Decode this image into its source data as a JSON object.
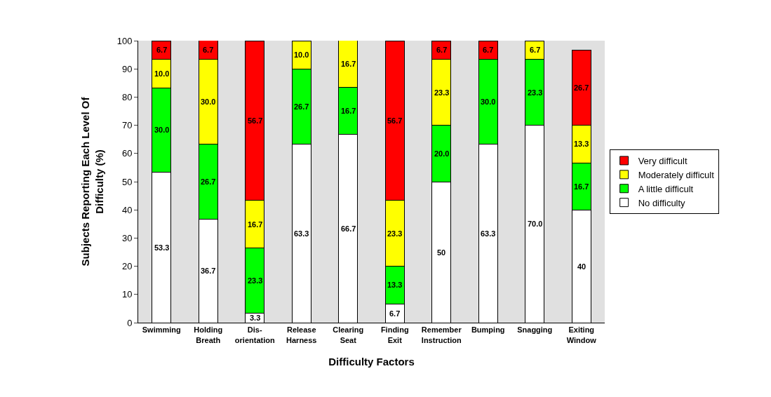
{
  "chart_data": {
    "type": "bar",
    "stacked": true,
    "xlabel": "Difficulty Factors",
    "ylabel": "Subjects Reporting Each Level Of\nDifficulty (%)",
    "categories": [
      "Swimming",
      "Holding\nBreath",
      "Dis-\norientation",
      "Release\nHarness",
      "Clearing\nSeat",
      "Finding\nExit",
      "Remember\nInstruction",
      "Bumping",
      "Snagging",
      "Exiting\nWindow"
    ],
    "series": [
      {
        "name": "No difficulty",
        "color": "#ffffff",
        "values": [
          53.3,
          36.7,
          3.3,
          63.3,
          66.7,
          6.7,
          50,
          63.3,
          70.0,
          40
        ],
        "value_labels": [
          "53.3",
          "36.7",
          "3.3",
          "63.3",
          "66.7",
          "6.7",
          "50",
          "63.3",
          "70.0",
          "40"
        ]
      },
      {
        "name": "A little difficult",
        "color": "#00ff00",
        "values": [
          30.0,
          26.7,
          23.3,
          26.7,
          16.7,
          13.3,
          20.0,
          30.0,
          23.3,
          16.7
        ],
        "value_labels": [
          "30.0",
          "26.7",
          "23.3",
          "26.7",
          "16.7",
          "13.3",
          "20.0",
          "30.0",
          "23.3",
          "16.7"
        ]
      },
      {
        "name": "Moderately difficult",
        "color": "#ffff00",
        "values": [
          10.0,
          30.0,
          16.7,
          10.0,
          16.7,
          23.3,
          23.3,
          null,
          6.7,
          13.3
        ],
        "value_labels": [
          "10.0",
          "30.0",
          "16.7",
          "10.0",
          "16.7",
          "23.3",
          "23.3",
          null,
          "6.7",
          "13.3"
        ]
      },
      {
        "name": "Very difficult",
        "color": "#ff0000",
        "values": [
          6.7,
          6.7,
          56.7,
          null,
          null,
          56.7,
          6.7,
          6.7,
          null,
          26.7
        ],
        "value_labels": [
          "6.7",
          "6.7",
          "56.7",
          null,
          null,
          "56.7",
          "6.7",
          "6.7",
          null,
          "26.7"
        ]
      }
    ],
    "ylim": [
      0,
      100
    ],
    "yticks": [
      0,
      10,
      20,
      30,
      40,
      50,
      60,
      70,
      80,
      90,
      100
    ],
    "grid": false,
    "legend": "right"
  }
}
